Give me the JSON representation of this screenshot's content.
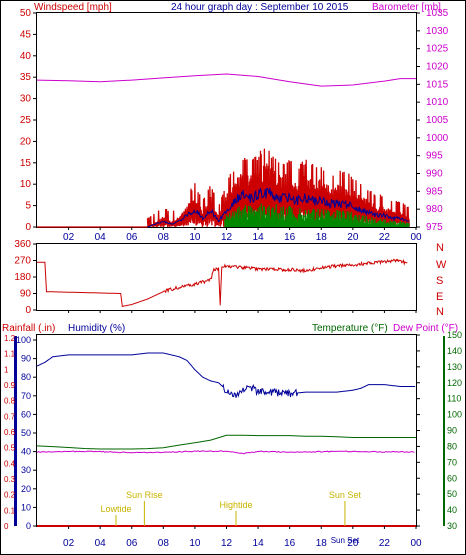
{
  "header": {
    "windspeed_title": "Windspeed [mph]",
    "graph_title": "24 hour graph day : September 10 2015",
    "barometer_title": "Barometer [mb]"
  },
  "bottom_panel_titles": {
    "rainfall": "Rainfall (.in)",
    "humidity": "Humidity (%)",
    "temperature": "Temperature (°F)",
    "dew_point": "Dew Point (°F)"
  },
  "x_ticks": [
    "02",
    "04",
    "06",
    "08",
    "10",
    "12",
    "14",
    "16",
    "18",
    "20",
    "22",
    "00"
  ],
  "direction_labels": [
    "N",
    "W",
    "S",
    "E",
    "N"
  ],
  "events": [
    {
      "label": "Lowtide",
      "hour": 5.0
    },
    {
      "label": "Sun Rise",
      "hour": 6.8
    },
    {
      "label": "Hightide",
      "hour": 12.6
    },
    {
      "label": "Sun Set",
      "hour": 19.5
    }
  ],
  "event_extra_label": "Sun Set",
  "colors": {
    "windspeed": "#cc0000",
    "barometer": "#cc00cc",
    "humidity": "#000099",
    "temperature": "#006600",
    "dew_point": "#cc00cc",
    "rainfall": "#cc0000",
    "events": "#c8b400"
  },
  "chart_data": [
    {
      "type": "line",
      "x_unit": "hour",
      "x_range": [
        0,
        24
      ],
      "left_axis": {
        "label": "Windspeed [mph]",
        "ylim": [
          0,
          50
        ],
        "ticks": [
          "0",
          "5",
          "10",
          "15",
          "20",
          "25",
          "30",
          "35",
          "40",
          "45",
          "50"
        ]
      },
      "right_axis": {
        "label": "Barometer [mb]",
        "ylim": [
          975,
          1035
        ],
        "ticks": [
          "975",
          "980",
          "985",
          "990",
          "995",
          "1000",
          "1005",
          "1010",
          "1015",
          "1020",
          "1025",
          "1030",
          "1035"
        ]
      },
      "series": [
        {
          "name": "Windspeed [mph]",
          "axis": "left",
          "x": [
            0,
            7,
            7.5,
            8,
            8.5,
            9,
            9.5,
            10,
            10.5,
            11,
            11.5,
            12,
            12.5,
            13,
            13.5,
            14,
            14.5,
            15,
            15.5,
            16,
            16.5,
            17,
            17.5,
            18,
            18.5,
            19,
            19.5,
            20,
            20.5,
            21,
            21.5,
            22,
            22.5,
            23,
            23.5
          ],
          "y": [
            0,
            0,
            1,
            2,
            1,
            2,
            4,
            6,
            3,
            6,
            2,
            6,
            9,
            11,
            10,
            11,
            12,
            11,
            10,
            10,
            9,
            10,
            9,
            9,
            8,
            8,
            8,
            7,
            6,
            5,
            4,
            4,
            3,
            3,
            2
          ]
        },
        {
          "name": "Barometer [mb]",
          "axis": "right",
          "x": [
            0,
            2,
            4,
            6,
            8,
            10,
            12,
            14,
            16,
            18,
            20,
            22,
            23,
            24
          ],
          "y": [
            1016.2,
            1016.0,
            1015.7,
            1016.2,
            1016.8,
            1017.4,
            1017.9,
            1017.2,
            1015.7,
            1014.5,
            1014.8,
            1015.9,
            1016.6,
            1016.6
          ]
        }
      ]
    },
    {
      "type": "line",
      "x_unit": "hour",
      "x_range": [
        0,
        24
      ],
      "left_axis": {
        "ylim": [
          0,
          360
        ],
        "ticks": [
          "0",
          "90",
          "180",
          "270",
          "360"
        ]
      },
      "right_labels": [
        "N",
        "W",
        "S",
        "E",
        "N"
      ],
      "series": [
        {
          "name": "Wind direction",
          "x": [
            0,
            0.5,
            0.6,
            3,
            5.3,
            5.4,
            6,
            6.5,
            7,
            7.5,
            8,
            9,
            10,
            11,
            11.2,
            11.5,
            11.6,
            11.7,
            12,
            13,
            14,
            15,
            16,
            17,
            18,
            19,
            20,
            21,
            22,
            23,
            23.5
          ],
          "y": [
            260,
            260,
            100,
            95,
            90,
            20,
            30,
            45,
            60,
            80,
            100,
            125,
            140,
            165,
            220,
            225,
            25,
            240,
            240,
            230,
            225,
            220,
            220,
            215,
            230,
            240,
            245,
            255,
            265,
            270,
            250
          ]
        }
      ]
    },
    {
      "type": "line",
      "x_unit": "hour",
      "x_range": [
        0,
        24
      ],
      "axes": [
        {
          "label": "Rainfall (.in)",
          "ylim": [
            0,
            1.2
          ],
          "ticks": [
            "0",
            "0.1",
            "0.2",
            "0.3",
            "0.4",
            "0.5",
            "0.6",
            "0.7",
            "0.8",
            "0.9",
            "1",
            "1.1",
            "1.2"
          ]
        },
        {
          "label": "Humidity (%)",
          "ylim": [
            0,
            100
          ],
          "ticks": [
            "0",
            "10",
            "20",
            "30",
            "40",
            "50",
            "60",
            "70",
            "80",
            "90",
            "100"
          ]
        },
        {
          "label": "Temperature (°F)",
          "ylim": [
            30,
            150
          ],
          "ticks": [
            "30",
            "40",
            "50",
            "60",
            "70",
            "80",
            "90",
            "100",
            "110",
            "120",
            "130",
            "140",
            "150"
          ]
        }
      ],
      "series": [
        {
          "name": "Humidity (%)",
          "axis": "Humidity (%)",
          "x": [
            0,
            0.5,
            1,
            2,
            3,
            4,
            5,
            6,
            7,
            8,
            9,
            9.5,
            10,
            10.5,
            11,
            11.5,
            12,
            12.5,
            13,
            13.5,
            14,
            15,
            16,
            17,
            18,
            19,
            20,
            20.5,
            21,
            22,
            23,
            24
          ],
          "y": [
            86,
            88,
            91,
            92,
            92,
            92,
            92,
            92,
            93,
            93,
            91,
            89,
            84,
            80,
            78,
            77,
            73,
            70,
            72,
            75,
            72,
            72,
            71,
            72,
            72,
            72,
            73,
            74,
            76,
            76,
            75,
            75
          ]
        },
        {
          "name": "Temperature (°F)",
          "axis": "Temperature (°F)",
          "x": [
            0,
            1,
            2,
            3,
            4,
            5,
            6,
            7,
            8,
            9,
            10,
            11,
            12,
            13,
            14,
            15,
            16,
            17,
            18,
            19,
            20,
            21,
            22,
            23,
            24
          ],
          "y": [
            80.3,
            79.9,
            79.3,
            78.7,
            78.4,
            78.4,
            78.4,
            78.6,
            79.1,
            80.8,
            82.3,
            84.0,
            87.0,
            87.0,
            86.8,
            86.8,
            86.8,
            86.4,
            86.4,
            86.1,
            85.6,
            85.6,
            85.6,
            85.6,
            85.6
          ]
        },
        {
          "name": "Dew Point (°F)",
          "axis": "Temperature (°F)",
          "x": [
            0,
            2,
            4,
            6,
            8,
            10,
            12,
            13,
            14,
            16,
            18,
            20,
            22,
            24
          ],
          "y": [
            76.5,
            76.9,
            76.7,
            76.1,
            76.3,
            77.0,
            77.0,
            75.5,
            76.9,
            76.5,
            76.7,
            76.9,
            76.5,
            76.5
          ]
        },
        {
          "name": "Rainfall (.in)",
          "axis": "Rainfall (.in)",
          "x": [
            0,
            24
          ],
          "y": [
            0,
            0
          ]
        }
      ]
    }
  ]
}
